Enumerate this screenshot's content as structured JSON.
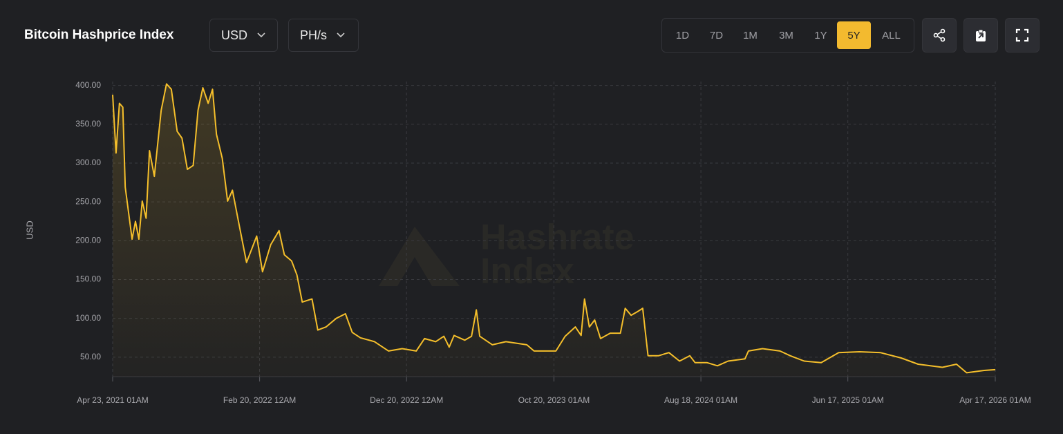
{
  "header": {
    "title": "Bitcoin Hashprice Index",
    "dropdowns": [
      "USD",
      "PH/s"
    ],
    "ranges": [
      "1D",
      "7D",
      "1M",
      "3M",
      "1Y",
      "5Y",
      "ALL"
    ],
    "selected_range": 5
  },
  "watermark": [
    "Hashrate",
    "Index"
  ],
  "chart_data": {
    "type": "line",
    "y_label": "USD",
    "x": [
      "2021-04-23",
      "2021-04-30",
      "2021-05-07",
      "2021-05-14",
      "2021-05-19",
      "2021-06-02",
      "2021-06-09",
      "2021-06-16",
      "2021-06-23",
      "2021-07-01",
      "2021-07-08",
      "2021-07-18",
      "2021-08-01",
      "2021-08-12",
      "2021-08-22",
      "2021-09-03",
      "2021-09-13",
      "2021-09-24",
      "2021-10-06",
      "2021-10-16",
      "2021-10-26",
      "2021-11-06",
      "2021-11-15",
      "2021-11-23",
      "2021-12-05",
      "2021-12-16",
      "2021-12-26",
      "2022-01-09",
      "2022-01-24",
      "2022-02-14",
      "2022-02-26",
      "2022-03-15",
      "2022-04-01",
      "2022-04-12",
      "2022-04-27",
      "2022-05-08",
      "2022-05-19",
      "2022-06-08",
      "2022-06-20",
      "2022-07-07",
      "2022-07-28",
      "2022-08-16",
      "2022-08-30",
      "2022-09-16",
      "2022-10-15",
      "2022-11-13",
      "2022-12-11",
      "2023-01-09",
      "2023-01-26",
      "2023-02-18",
      "2023-03-07",
      "2023-03-18",
      "2023-03-28",
      "2023-04-19",
      "2023-05-03",
      "2023-05-13",
      "2023-05-20",
      "2023-06-15",
      "2023-07-13",
      "2023-08-25",
      "2023-09-09",
      "2023-10-07",
      "2023-10-24",
      "2023-11-12",
      "2023-12-03",
      "2023-12-15",
      "2023-12-22",
      "2024-01-01",
      "2024-01-12",
      "2024-01-24",
      "2024-02-13",
      "2024-03-05",
      "2024-03-15",
      "2024-03-27",
      "2024-04-10",
      "2024-04-20",
      "2024-05-01",
      "2024-05-23",
      "2024-06-13",
      "2024-07-05",
      "2024-07-26",
      "2024-08-06",
      "2024-08-31",
      "2024-09-21",
      "2024-10-13",
      "2024-11-17",
      "2024-11-24",
      "2024-12-23",
      "2025-01-28",
      "2025-02-18",
      "2025-03-19",
      "2025-04-23",
      "2025-05-29",
      "2025-07-11",
      "2025-08-23",
      "2025-10-05",
      "2025-11-09",
      "2025-12-29",
      "2026-01-27",
      "2026-02-17",
      "2026-03-25",
      "2026-04-17"
    ],
    "series": [
      {
        "name": "Hashprice",
        "color": "#f5bf2b",
        "values": [
          388,
          313,
          377,
          372,
          269,
          202,
          225,
          202,
          251,
          229,
          316,
          283,
          368,
          402,
          395,
          341,
          332,
          292,
          297,
          368,
          397,
          377,
          395,
          337,
          306,
          251,
          265,
          220,
          172,
          206,
          160,
          195,
          213,
          182,
          174,
          156,
          121,
          125,
          85,
          89,
          100,
          106,
          82,
          75,
          70,
          58,
          61,
          58,
          74,
          70,
          77,
          63,
          78,
          72,
          77,
          111,
          77,
          66,
          70,
          66,
          58,
          58,
          58,
          77,
          89,
          78,
          125,
          89,
          98,
          74,
          81,
          81,
          113,
          104,
          109,
          113,
          52,
          52,
          56,
          45,
          52,
          43,
          43,
          39,
          45,
          48,
          58,
          61,
          58,
          52,
          45,
          43,
          56,
          57,
          56,
          49,
          41,
          37,
          41,
          30,
          33,
          34
        ]
      }
    ],
    "xlim": [
      "2021-04-23",
      "2026-04-17"
    ],
    "xticks": [
      {
        "value": "2021-04-23",
        "label": "Apr 23, 2021 01AM"
      },
      {
        "value": "2022-02-20",
        "label": "Feb 20, 2022 12AM"
      },
      {
        "value": "2022-12-20",
        "label": "Dec 20, 2022 12AM"
      },
      {
        "value": "2023-10-20",
        "label": "Oct 20, 2023 01AM"
      },
      {
        "value": "2024-08-18",
        "label": "Aug 18, 2024 01AM"
      },
      {
        "value": "2025-06-17",
        "label": "Jun 17, 2025 01AM"
      },
      {
        "value": "2026-04-17",
        "label": "Apr 17, 2026 01AM"
      }
    ],
    "ylim": [
      25,
      405
    ],
    "yticks": [
      {
        "value": 50,
        "label": "50.00"
      },
      {
        "value": 100,
        "label": "100.00"
      },
      {
        "value": 150,
        "label": "150.00"
      },
      {
        "value": 200,
        "label": "200.00"
      },
      {
        "value": 250,
        "label": "250.00"
      },
      {
        "value": 300,
        "label": "300.00"
      },
      {
        "value": 350,
        "label": "350.00"
      },
      {
        "value": 400,
        "label": "400.00"
      }
    ],
    "grid": true
  }
}
